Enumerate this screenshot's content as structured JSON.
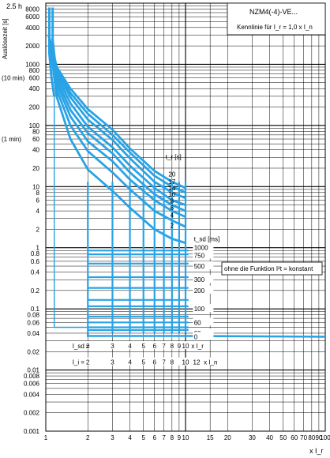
{
  "chart_data": {
    "type": "line",
    "title": "NZM4(-4)-VE...",
    "subtitle": "Kennlinie für I_r = 1,0 x I_n",
    "ylabel": "Auslösezeit [s]",
    "ylabel_top": "2.5 h",
    "xlabel": "x I_r",
    "y_scale": "log",
    "x_scale": "log",
    "ylim": [
      0.001,
      10000
    ],
    "xlim": [
      1,
      100
    ],
    "grid": true,
    "y_ticks": [
      "8000",
      "6000",
      "4000",
      "2000",
      "1000",
      "800",
      "600",
      "400",
      "200",
      "100",
      "80",
      "60",
      "40",
      "20",
      "10",
      "8",
      "6",
      "4",
      "2",
      "1",
      "0.8",
      "0.6",
      "0.4",
      "0.2",
      "0.1",
      "0.08",
      "0.06",
      "0.04",
      "0.02",
      "0.01",
      "0.008",
      "0.006",
      "0.004",
      "0.002",
      "0.001"
    ],
    "y_extra_labels": [
      {
        "text": "(10 min)",
        "y": 600
      },
      {
        "text": "(1 min)",
        "y": 60
      }
    ],
    "x_ticks": [
      "1",
      "2",
      "3",
      "4",
      "5",
      "6",
      "7",
      "8",
      "9",
      "10",
      "15",
      "20",
      "30",
      "40",
      "50",
      "60",
      "70",
      "80",
      "90",
      "100"
    ],
    "series": [
      {
        "label": "20",
        "values": [
          [
            1.05,
            3000
          ],
          [
            1.2,
            900
          ],
          [
            1.5,
            400
          ],
          [
            2,
            185
          ],
          [
            3,
            85
          ],
          [
            4,
            42
          ],
          [
            6,
            18
          ],
          [
            8,
            12
          ],
          [
            10,
            9.5
          ]
        ]
      },
      {
        "label": "17",
        "values": [
          [
            1.05,
            3000
          ],
          [
            1.2,
            820
          ],
          [
            1.5,
            340
          ],
          [
            2,
            155
          ],
          [
            3,
            70
          ],
          [
            4,
            36
          ],
          [
            6,
            15
          ],
          [
            8,
            10
          ],
          [
            10,
            8
          ]
        ]
      },
      {
        "label": "14",
        "values": [
          [
            1.05,
            3000
          ],
          [
            1.2,
            740
          ],
          [
            1.5,
            290
          ],
          [
            2,
            125
          ],
          [
            3,
            58
          ],
          [
            4,
            29
          ],
          [
            6,
            12
          ],
          [
            8,
            8
          ],
          [
            10,
            6.5
          ]
        ]
      },
      {
        "label": "10",
        "values": [
          [
            1.05,
            3000
          ],
          [
            1.2,
            650
          ],
          [
            1.5,
            230
          ],
          [
            2,
            95
          ],
          [
            3,
            44
          ],
          [
            4,
            22
          ],
          [
            6,
            9.5
          ],
          [
            8,
            6
          ],
          [
            10,
            5
          ]
        ]
      },
      {
        "label": "8",
        "values": [
          [
            1.05,
            3000
          ],
          [
            1.2,
            560
          ],
          [
            1.5,
            180
          ],
          [
            2,
            75
          ],
          [
            3,
            35
          ],
          [
            4,
            17
          ],
          [
            6,
            7.5
          ],
          [
            8,
            5
          ],
          [
            10,
            4
          ]
        ]
      },
      {
        "label": "6",
        "values": [
          [
            1.05,
            3000
          ],
          [
            1.2,
            470
          ],
          [
            1.5,
            140
          ],
          [
            2,
            55
          ],
          [
            3,
            26
          ],
          [
            4,
            13
          ],
          [
            6,
            6
          ],
          [
            8,
            4
          ],
          [
            10,
            3.2
          ]
        ]
      },
      {
        "label": "4",
        "values": [
          [
            1.05,
            3000
          ],
          [
            1.2,
            380
          ],
          [
            1.5,
            100
          ],
          [
            2,
            38
          ],
          [
            3,
            17
          ],
          [
            4,
            9
          ],
          [
            6,
            4
          ],
          [
            8,
            2.8
          ],
          [
            10,
            2.2
          ]
        ]
      },
      {
        "label": "2",
        "values": [
          [
            1.05,
            3000
          ],
          [
            1.2,
            290
          ],
          [
            1.5,
            60
          ],
          [
            2,
            19
          ],
          [
            3,
            8.5
          ],
          [
            4,
            4.5
          ],
          [
            6,
            2
          ],
          [
            8,
            1.4
          ],
          [
            10,
            1.2
          ]
        ]
      }
    ],
    "tr_label": "t_r [s]",
    "tr_labels": [
      "20",
      "17",
      "14",
      "10",
      "8",
      "6",
      "4",
      "2"
    ],
    "tsd_label": "t_sd [ms]",
    "tsd_labels": [
      {
        "text": "1000",
        "y": 1
      },
      {
        "text": "750",
        "y": 0.75
      },
      {
        "text": "500",
        "y": 0.5
      },
      {
        "text": "300",
        "y": 0.3
      },
      {
        "text": "200",
        "y": 0.2
      },
      {
        "text": "100",
        "y": 0.1
      },
      {
        "text": "60",
        "y": 0.06
      },
      {
        "text": "20",
        "y": 0.04
      },
      {
        "text": "0",
        "y": 0.035
      }
    ],
    "tsd_levels": [
      0.9,
      0.78,
      0.55,
      0.33,
      0.22,
      0.14,
      0.11,
      0.075,
      0.06,
      0.05,
      0.045
    ],
    "isd_label": "I_sd =",
    "isd_values": [
      "2",
      "3",
      "4",
      "5",
      "6",
      "7",
      "8",
      "9",
      "10"
    ],
    "isd_unit": "x I_r",
    "ii_label": "I_i =",
    "ii_values": [
      "2",
      "3",
      "4",
      "5",
      "6",
      "7",
      "8",
      "10",
      "12"
    ],
    "ii_unit": "x I_n",
    "annotation": "ohne die Funktion I²t = konstant"
  }
}
